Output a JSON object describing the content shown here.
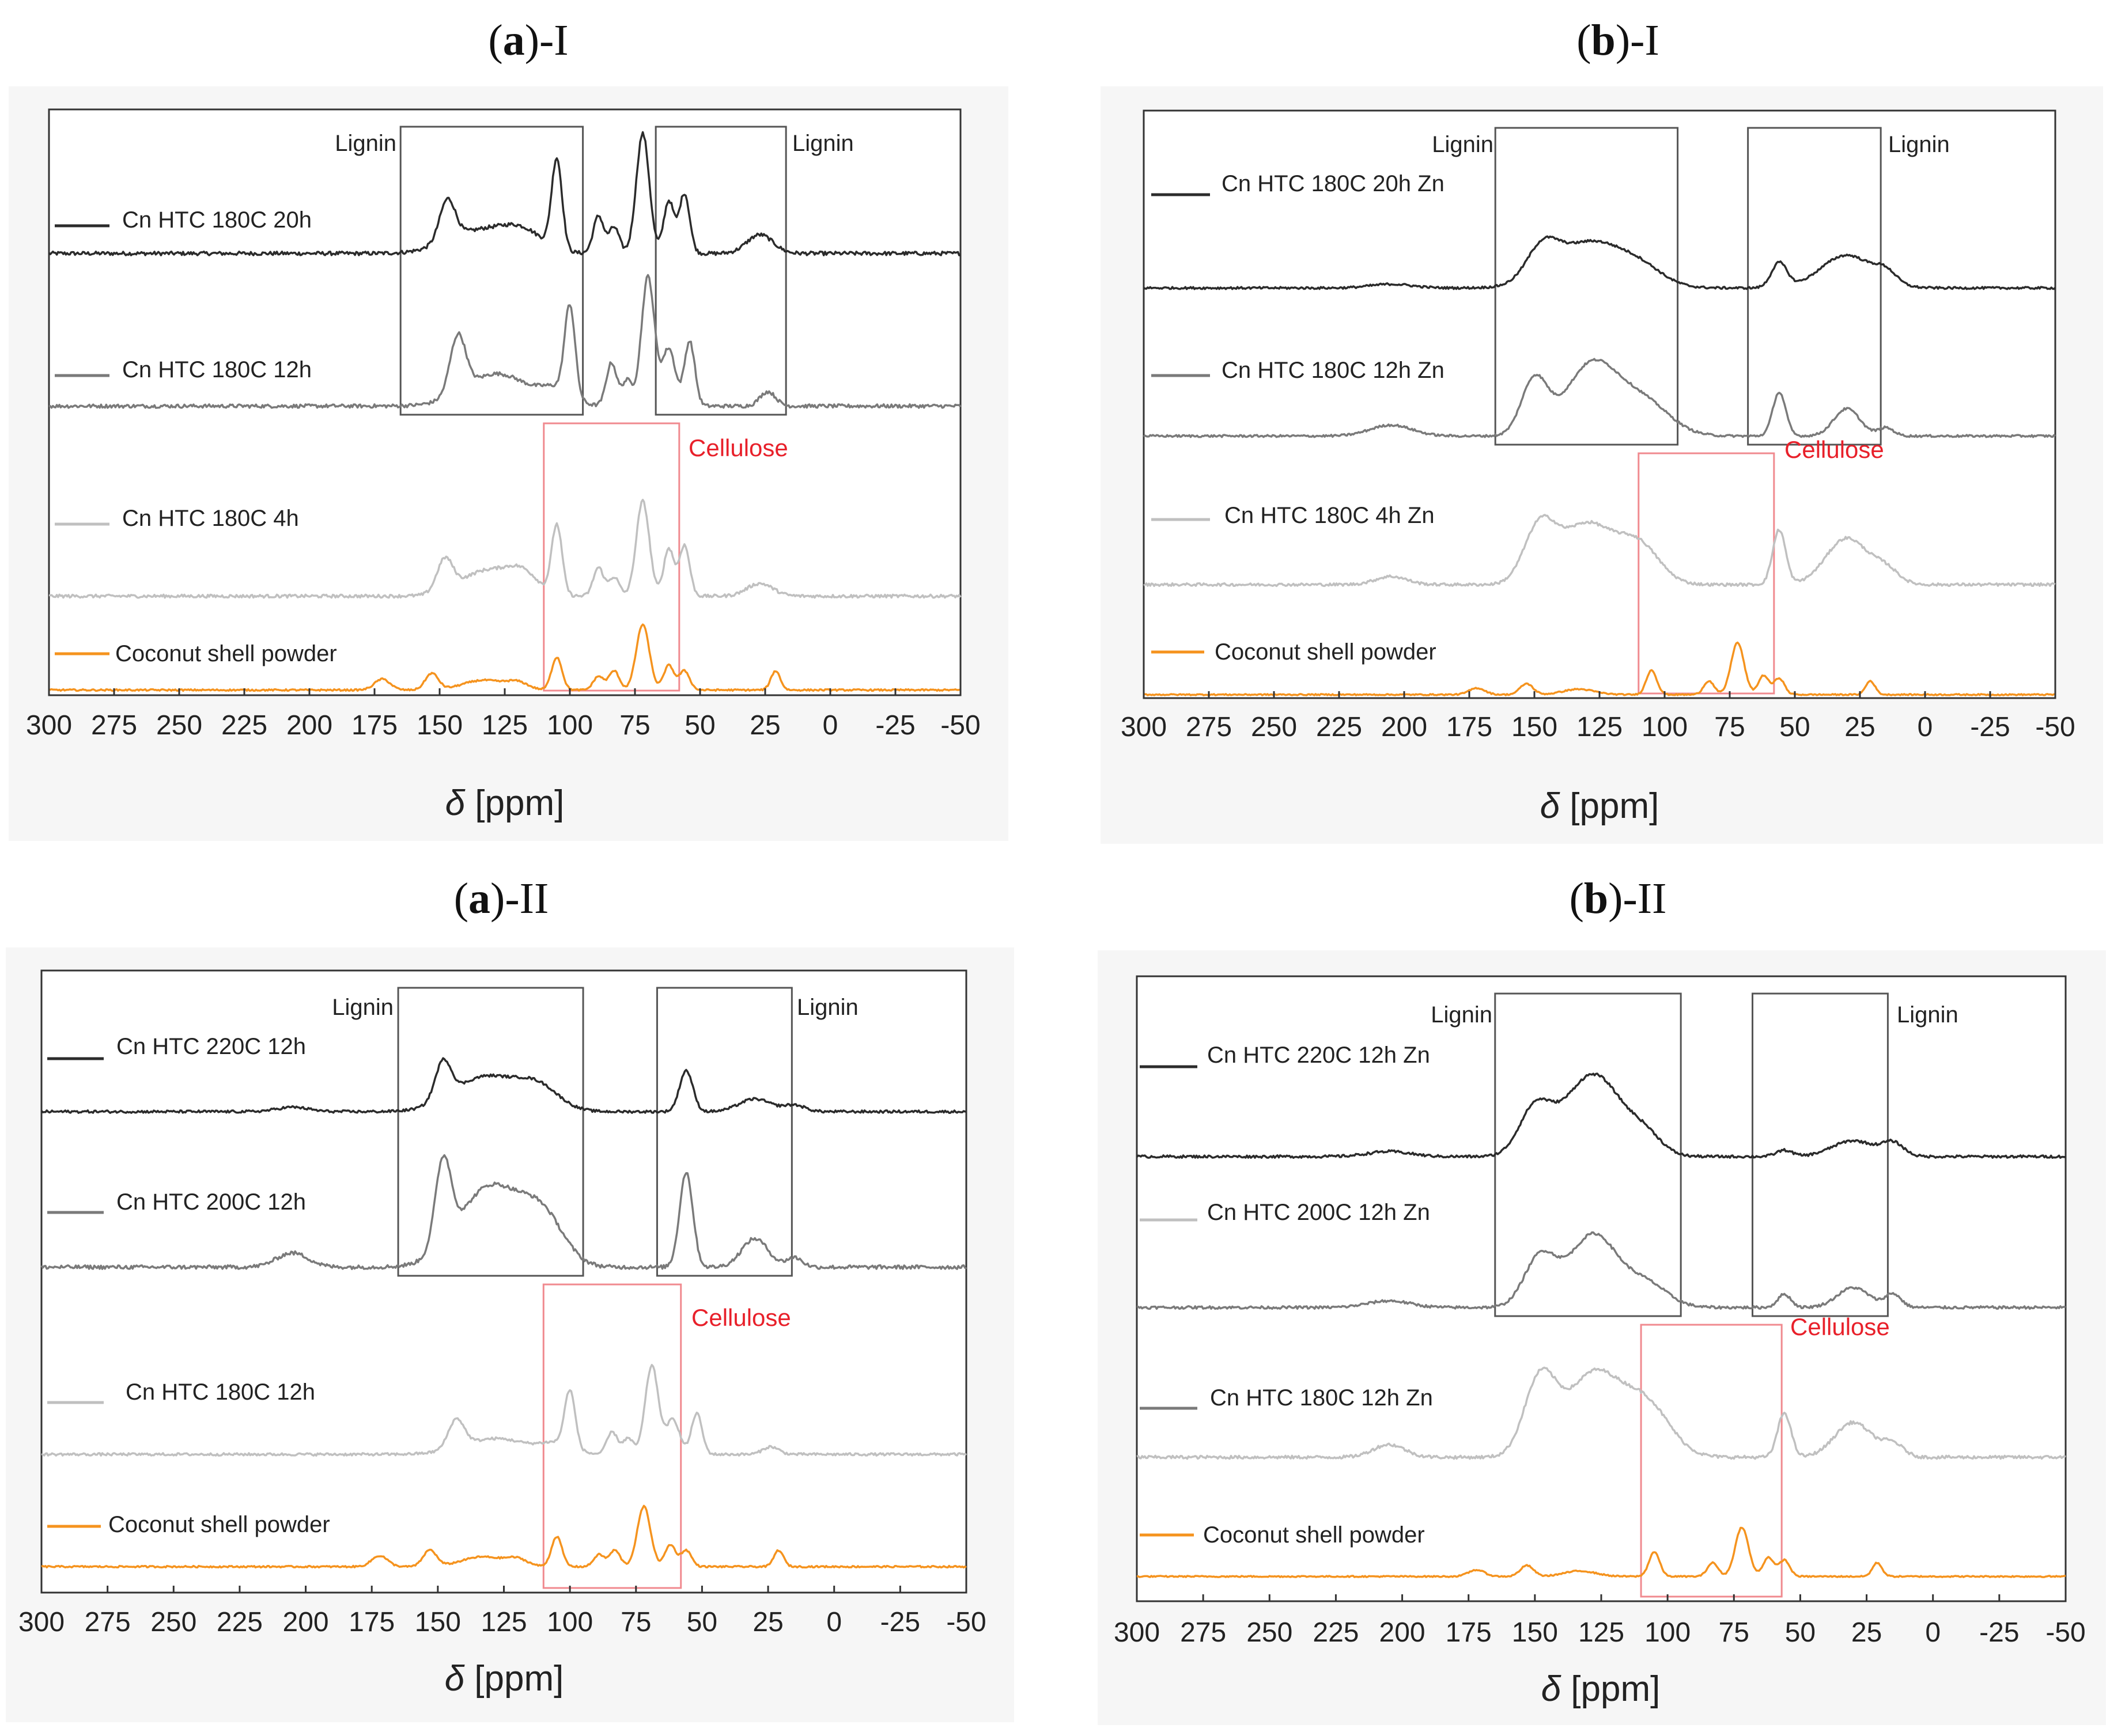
{
  "chart_data": [
    {
      "id": "a1",
      "panel_letter": "a",
      "panel_suffix": ")-I",
      "type": "line",
      "title": "(a)-I",
      "xlabel_symbol": "δ",
      "xlabel": " [ppm]",
      "xlim": [
        300,
        -50
      ],
      "xticks": [
        300,
        275,
        250,
        225,
        200,
        175,
        150,
        125,
        100,
        75,
        50,
        25,
        0,
        -25,
        -50
      ],
      "series": [
        {
          "name": "Cn HTC 180C 20h",
          "color": "#2b2b2b",
          "peaks": [
            [
              147,
              0.55,
              3
            ],
            [
              135,
              0.3,
              12
            ],
            [
              118,
              0.25,
              8
            ],
            [
              105,
              1.2,
              2
            ],
            [
              89,
              0.5,
              2
            ],
            [
              83,
              0.35,
              2
            ],
            [
              72,
              1.6,
              2.5
            ],
            [
              62,
              0.7,
              2
            ],
            [
              56,
              0.8,
              2
            ],
            [
              27,
              0.25,
              5
            ]
          ],
          "noise": 0.025
        },
        {
          "name": "Cn HTC 180C 12h",
          "color": "#7a7a7a",
          "peaks": [
            [
              143,
              0.8,
              3
            ],
            [
              128,
              0.45,
              12
            ],
            [
              105,
              0.2,
              6
            ],
            [
              100,
              1.25,
              2
            ],
            [
              84,
              0.6,
              2
            ],
            [
              78,
              0.35,
              2
            ],
            [
              70,
              1.8,
              2.5
            ],
            [
              62,
              0.8,
              2.5
            ],
            [
              54,
              0.9,
              2
            ],
            [
              24,
              0.2,
              3
            ]
          ],
          "noise": 0.025
        },
        {
          "name": "Cn HTC 180C 4h",
          "color": "#c0c0c0",
          "peaks": [
            [
              148,
              0.5,
              3
            ],
            [
              132,
              0.4,
              10
            ],
            [
              118,
              0.3,
              6
            ],
            [
              105,
              1.1,
              2
            ],
            [
              89,
              0.45,
              2
            ],
            [
              83,
              0.3,
              2
            ],
            [
              72,
              1.5,
              2.5
            ],
            [
              62,
              0.75,
              2
            ],
            [
              56,
              0.8,
              2
            ],
            [
              27,
              0.2,
              5
            ]
          ],
          "noise": 0.025
        },
        {
          "name": "Coconut shell powder",
          "color": "#f5931e",
          "peaks": [
            [
              172,
              0.2,
              3
            ],
            [
              153,
              0.3,
              2.5
            ],
            [
              133,
              0.18,
              8
            ],
            [
              120,
              0.12,
              4
            ],
            [
              105,
              0.6,
              2
            ],
            [
              89,
              0.25,
              2
            ],
            [
              83,
              0.35,
              2
            ],
            [
              72,
              1.2,
              2.5
            ],
            [
              62,
              0.45,
              2
            ],
            [
              56,
              0.35,
              2
            ],
            [
              21,
              0.35,
              1.8
            ]
          ],
          "noise": 0.015
        }
      ],
      "annotations": {
        "lignin_left": "Lignin",
        "lignin_right": "Lignin",
        "cellulose": "Cellulose"
      },
      "boxes": {
        "lignin_left": [
          165,
          95
        ],
        "lignin_right": [
          67,
          17
        ],
        "cellulose": [
          110,
          58
        ]
      }
    },
    {
      "id": "b1",
      "panel_letter": "b",
      "panel_suffix": ")-I",
      "type": "line",
      "title": "(b)-I",
      "xlabel_symbol": "δ",
      "xlabel": " [ppm]",
      "xlim": [
        300,
        -50
      ],
      "xticks": [
        300,
        275,
        250,
        225,
        200,
        175,
        150,
        125,
        100,
        75,
        50,
        25,
        0,
        -25,
        -50
      ],
      "series": [
        {
          "name": "Cn HTC 180C 20h Zn",
          "color": "#2b2b2b",
          "peaks": [
            [
              205,
              0.07,
              8
            ],
            [
              147,
              0.55,
              6
            ],
            [
              128,
              0.85,
              14
            ],
            [
              108,
              0.2,
              8
            ],
            [
              56,
              0.45,
              3
            ],
            [
              30,
              0.6,
              10
            ],
            [
              15,
              0.2,
              4
            ]
          ],
          "noise": 0.02
        },
        {
          "name": "Cn HTC 180C 12h Zn",
          "color": "#7a7a7a",
          "peaks": [
            [
              205,
              0.2,
              8
            ],
            [
              150,
              1.0,
              5
            ],
            [
              128,
              1.3,
              10
            ],
            [
              108,
              0.6,
              10
            ],
            [
              56,
              0.8,
              2.5
            ],
            [
              30,
              0.5,
              5
            ],
            [
              15,
              0.15,
              3
            ]
          ],
          "noise": 0.02
        },
        {
          "name": "Cn HTC 180C 4h Zn",
          "color": "#c0c0c0",
          "peaks": [
            [
              205,
              0.15,
              6
            ],
            [
              148,
              1.0,
              6
            ],
            [
              130,
              1.1,
              10
            ],
            [
              110,
              0.7,
              8
            ],
            [
              56,
              1.0,
              2.5
            ],
            [
              30,
              0.85,
              8
            ],
            [
              15,
              0.25,
              5
            ]
          ],
          "noise": 0.025
        },
        {
          "name": "Coconut shell powder",
          "color": "#f5931e",
          "peaks": [
            [
              172,
              0.12,
              3
            ],
            [
              153,
              0.2,
              2.5
            ],
            [
              133,
              0.1,
              6
            ],
            [
              105,
              0.45,
              2
            ],
            [
              83,
              0.25,
              2
            ],
            [
              72,
              0.95,
              2.5
            ],
            [
              62,
              0.35,
              2
            ],
            [
              56,
              0.3,
              2
            ],
            [
              21,
              0.25,
              1.8
            ]
          ],
          "noise": 0.012
        }
      ],
      "annotations": {
        "lignin_left": "Lignin",
        "lignin_right": "Lignin",
        "cellulose": "Cellulose"
      },
      "boxes": {
        "lignin_left": [
          165,
          95
        ],
        "lignin_right": [
          68,
          17
        ],
        "cellulose": [
          110,
          58
        ]
      }
    },
    {
      "id": "a2",
      "panel_letter": "a",
      "panel_suffix": ")-II",
      "type": "line",
      "title": "(a)-II",
      "xlabel_symbol": "δ",
      "xlabel": " [ppm]",
      "xlim": [
        300,
        -50
      ],
      "xticks": [
        300,
        275,
        250,
        225,
        200,
        175,
        150,
        125,
        100,
        75,
        50,
        25,
        0,
        -25,
        -50
      ],
      "series": [
        {
          "name": "Cn HTC 220C 12h",
          "color": "#2b2b2b",
          "peaks": [
            [
              205,
              0.07,
              6
            ],
            [
              148,
              0.6,
              3
            ],
            [
              132,
              0.55,
              12
            ],
            [
              112,
              0.35,
              8
            ],
            [
              56,
              0.65,
              2.5
            ],
            [
              30,
              0.2,
              6
            ],
            [
              15,
              0.1,
              4
            ]
          ],
          "noise": 0.02
        },
        {
          "name": "Cn HTC 200C 12h",
          "color": "#7a7a7a",
          "peaks": [
            [
              205,
              0.15,
              6
            ],
            [
              148,
              0.9,
              3
            ],
            [
              130,
              0.85,
              12
            ],
            [
              110,
              0.45,
              8
            ],
            [
              56,
              1.0,
              2.5
            ],
            [
              30,
              0.3,
              5
            ],
            [
              15,
              0.1,
              3
            ]
          ],
          "noise": 0.02
        },
        {
          "name": "Cn HTC 180C 12h",
          "color": "#c0c0c0",
          "peaks": [
            [
              143,
              0.45,
              3
            ],
            [
              128,
              0.25,
              12
            ],
            [
              105,
              0.15,
              6
            ],
            [
              100,
              0.9,
              2
            ],
            [
              84,
              0.35,
              2
            ],
            [
              78,
              0.25,
              2
            ],
            [
              69,
              1.4,
              2.5
            ],
            [
              61,
              0.55,
              2.5
            ],
            [
              52,
              0.65,
              2
            ],
            [
              24,
              0.12,
              3
            ]
          ],
          "noise": 0.02
        },
        {
          "name": "Coconut shell powder",
          "color": "#f5931e",
          "peaks": [
            [
              172,
              0.2,
              3
            ],
            [
              153,
              0.3,
              2.5
            ],
            [
              133,
              0.18,
              8
            ],
            [
              120,
              0.12,
              4
            ],
            [
              105,
              0.55,
              2
            ],
            [
              89,
              0.22,
              2
            ],
            [
              83,
              0.3,
              2
            ],
            [
              72,
              1.1,
              2.5
            ],
            [
              62,
              0.4,
              2
            ],
            [
              56,
              0.3,
              2
            ],
            [
              21,
              0.3,
              1.8
            ]
          ],
          "noise": 0.015
        }
      ],
      "annotations": {
        "lignin_left": "Lignin",
        "lignin_right": "Lignin",
        "cellulose": "Cellulose"
      },
      "boxes": {
        "lignin_left": [
          165,
          95
        ],
        "lignin_right": [
          67,
          16
        ],
        "cellulose": [
          110,
          58
        ]
      }
    },
    {
      "id": "b2",
      "panel_letter": "b",
      "panel_suffix": ")-II",
      "type": "line",
      "title": "(b)-II",
      "xlabel_symbol": "δ",
      "xlabel": " [ppm]",
      "xlim": [
        300,
        -50
      ],
      "xticks": [
        300,
        275,
        250,
        225,
        200,
        175,
        150,
        125,
        100,
        75,
        50,
        25,
        0,
        -25,
        -50
      ],
      "series": [
        {
          "name": "Cn HTC 220C 12h Zn",
          "color": "#2b2b2b",
          "peaks": [
            [
              205,
              0.08,
              8
            ],
            [
              150,
              0.7,
              6
            ],
            [
              128,
              1.3,
              11
            ],
            [
              108,
              0.25,
              6
            ],
            [
              56,
              0.1,
              3
            ],
            [
              30,
              0.25,
              8
            ],
            [
              15,
              0.2,
              4
            ]
          ],
          "noise": 0.02
        },
        {
          "name": "Cn HTC 200C 12h Zn",
          "color": "#7a7a7a",
          "peaks": [
            [
              205,
              0.1,
              8
            ],
            [
              148,
              0.75,
              6
            ],
            [
              128,
              1.1,
              9
            ],
            [
              108,
              0.35,
              8
            ],
            [
              56,
              0.2,
              2.5
            ],
            [
              30,
              0.3,
              6
            ],
            [
              15,
              0.2,
              3
            ]
          ],
          "noise": 0.02
        },
        {
          "name": "Cn HTC 180C 12h Zn",
          "color": "#c0c0c0",
          "peaks": [
            [
              205,
              0.2,
              6
            ],
            [
              148,
              1.2,
              6
            ],
            [
              128,
              1.3,
              10
            ],
            [
              108,
              0.8,
              9
            ],
            [
              56,
              0.7,
              2.5
            ],
            [
              30,
              0.55,
              7
            ],
            [
              15,
              0.2,
              4
            ]
          ],
          "noise": 0.025
        },
        {
          "name": "Coconut shell powder",
          "color": "#f5931e",
          "peaks": [
            [
              172,
              0.12,
              3
            ],
            [
              153,
              0.2,
              2.5
            ],
            [
              133,
              0.1,
              6
            ],
            [
              105,
              0.45,
              2
            ],
            [
              83,
              0.25,
              2
            ],
            [
              72,
              0.9,
              2.5
            ],
            [
              62,
              0.35,
              2
            ],
            [
              56,
              0.3,
              2
            ],
            [
              21,
              0.25,
              1.8
            ]
          ],
          "noise": 0.012
        }
      ],
      "annotations": {
        "lignin_left": "Lignin",
        "lignin_right": "Lignin",
        "cellulose": "Cellulose"
      },
      "boxes": {
        "lignin_left": [
          165,
          95
        ],
        "lignin_right": [
          68,
          17
        ],
        "cellulose": [
          110,
          57
        ]
      }
    }
  ]
}
